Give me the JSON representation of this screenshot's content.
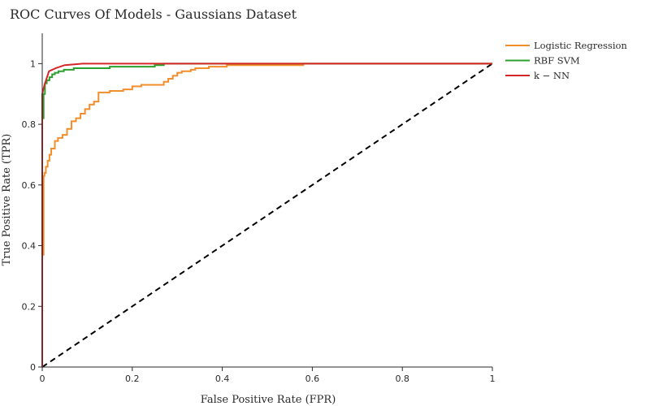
{
  "chart_data": {
    "type": "line",
    "title": "ROC Curves Of Models - Gaussians Dataset",
    "xlabel": "False Positive Rate (FPR)",
    "ylabel": "True Positive Rate (TPR)",
    "xlim": [
      0,
      1
    ],
    "ylim": [
      0,
      1.1
    ],
    "xticks": [
      0,
      0.2,
      0.4,
      0.6,
      0.8,
      1
    ],
    "yticks": [
      0,
      0.2,
      0.4,
      0.6,
      0.8,
      1
    ],
    "xtick_labels": [
      "0",
      "0.2",
      "0.4",
      "0.6",
      "0.8",
      "1"
    ],
    "ytick_labels": [
      "0",
      "0.2",
      "0.4",
      "0.6",
      "0.8",
      "1"
    ],
    "legend_position": "top-right outside",
    "grid": false,
    "series": [
      {
        "name": "Logistic Regression",
        "color": "#f28e2b",
        "x": [
          0,
          0,
          0.003,
          0.003,
          0.005,
          0.005,
          0.008,
          0.008,
          0.012,
          0.012,
          0.016,
          0.016,
          0.02,
          0.02,
          0.028,
          0.028,
          0.035,
          0.035,
          0.045,
          0.045,
          0.055,
          0.055,
          0.065,
          0.065,
          0.075,
          0.075,
          0.085,
          0.085,
          0.095,
          0.095,
          0.105,
          0.105,
          0.115,
          0.115,
          0.125,
          0.125,
          0.15,
          0.15,
          0.18,
          0.18,
          0.2,
          0.2,
          0.22,
          0.22,
          0.27,
          0.27,
          0.28,
          0.28,
          0.29,
          0.29,
          0.3,
          0.3,
          0.31,
          0.31,
          0.33,
          0.33,
          0.34,
          0.34,
          0.37,
          0.37,
          0.41,
          0.41,
          0.58,
          0.58,
          1
        ],
        "y": [
          0,
          0.37,
          0.37,
          0.63,
          0.63,
          0.64,
          0.64,
          0.66,
          0.66,
          0.68,
          0.68,
          0.7,
          0.7,
          0.72,
          0.72,
          0.745,
          0.745,
          0.755,
          0.755,
          0.765,
          0.765,
          0.785,
          0.785,
          0.81,
          0.81,
          0.82,
          0.82,
          0.835,
          0.835,
          0.85,
          0.85,
          0.865,
          0.865,
          0.875,
          0.875,
          0.905,
          0.905,
          0.91,
          0.91,
          0.915,
          0.915,
          0.925,
          0.925,
          0.93,
          0.93,
          0.94,
          0.94,
          0.95,
          0.95,
          0.96,
          0.96,
          0.97,
          0.97,
          0.975,
          0.975,
          0.98,
          0.98,
          0.985,
          0.985,
          0.99,
          0.99,
          0.995,
          0.995,
          1.0,
          1.0
        ]
      },
      {
        "name": "RBF SVM",
        "color": "#2ca02c",
        "x": [
          0,
          0,
          0.003,
          0.003,
          0.006,
          0.006,
          0.01,
          0.01,
          0.016,
          0.016,
          0.022,
          0.022,
          0.028,
          0.028,
          0.036,
          0.036,
          0.048,
          0.048,
          0.07,
          0.07,
          0.15,
          0.15,
          0.25,
          0.25,
          0.27,
          0.27,
          1
        ],
        "y": [
          0,
          0.82,
          0.82,
          0.9,
          0.9,
          0.935,
          0.935,
          0.945,
          0.945,
          0.955,
          0.955,
          0.965,
          0.965,
          0.97,
          0.97,
          0.975,
          0.975,
          0.98,
          0.98,
          0.985,
          0.985,
          0.99,
          0.99,
          0.995,
          0.995,
          1.0,
          1.0
        ]
      },
      {
        "name": "k − NN",
        "color": "#d62728",
        "x": [
          0,
          0,
          0.005,
          0.015,
          0.03,
          0.05,
          0.09,
          1
        ],
        "y": [
          0,
          0.9,
          0.93,
          0.975,
          0.985,
          0.995,
          1.0,
          1.0
        ]
      },
      {
        "name": "",
        "color": "#000000",
        "dashed": true,
        "x": [
          0,
          1
        ],
        "y": [
          0,
          1
        ]
      }
    ]
  }
}
